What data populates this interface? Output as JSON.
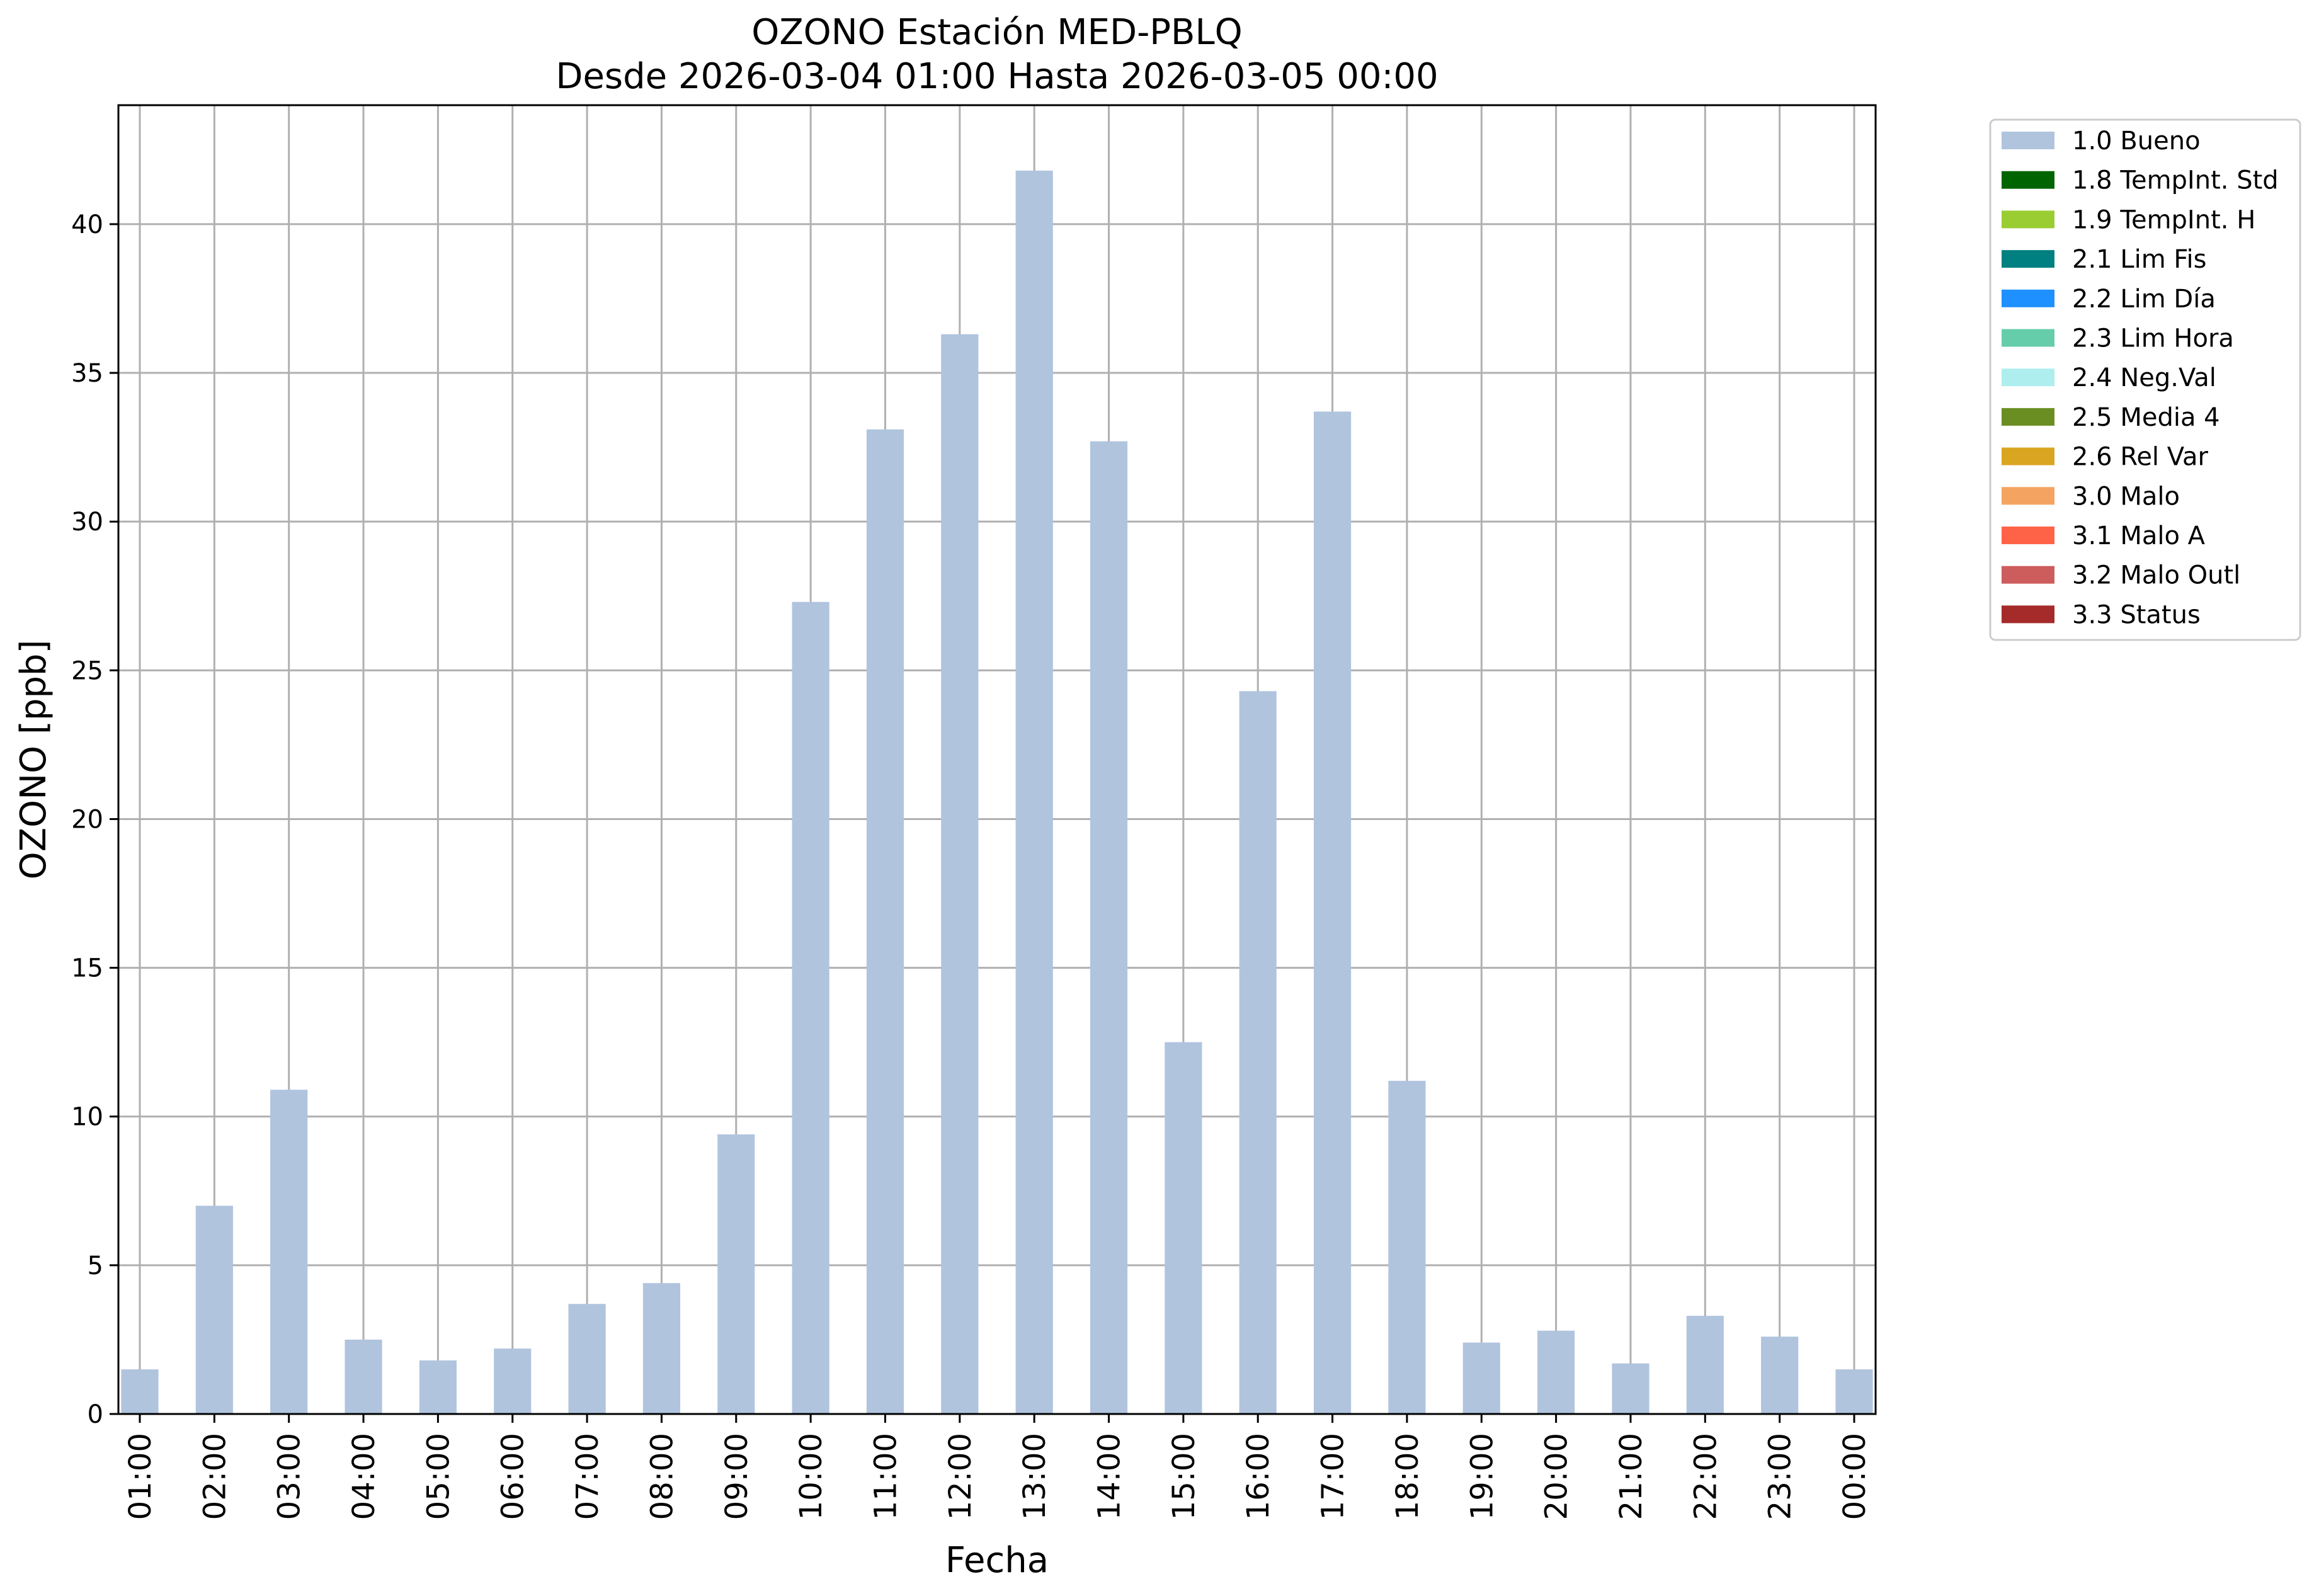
{
  "chart_data": {
    "type": "bar",
    "title": "OZONO Estación MED-PBLQ",
    "subtitle": "Desde 2026-03-04 01:00 Hasta 2026-03-05 00:00",
    "xlabel": "Fecha",
    "ylabel": "OZONO [ppb]",
    "ylim": [
      0,
      44
    ],
    "yticks": [
      "0",
      "5",
      "10",
      "15",
      "20",
      "25",
      "30",
      "35",
      "40"
    ],
    "grid": true,
    "legend_position": "outside-top-right",
    "categories": [
      "01:00",
      "02:00",
      "03:00",
      "04:00",
      "05:00",
      "06:00",
      "07:00",
      "08:00",
      "09:00",
      "10:00",
      "11:00",
      "12:00",
      "13:00",
      "14:00",
      "15:00",
      "16:00",
      "17:00",
      "18:00",
      "19:00",
      "20:00",
      "21:00",
      "22:00",
      "23:00",
      "00:00"
    ],
    "series": [
      {
        "name": "1.0 Bueno",
        "color": "#b0c4de",
        "values": [
          1.5,
          7.0,
          10.9,
          2.5,
          1.8,
          2.2,
          3.7,
          4.4,
          9.4,
          27.3,
          33.1,
          36.3,
          41.8,
          32.7,
          12.5,
          24.3,
          33.7,
          11.2,
          2.4,
          2.8,
          1.7,
          3.3,
          2.6,
          1.5
        ]
      }
    ],
    "legend": [
      {
        "label": "1.0 Bueno",
        "color": "#b0c4de"
      },
      {
        "label": "1.8 TempInt. Std",
        "color": "#006400"
      },
      {
        "label": "1.9 TempInt. H",
        "color": "#9acd32"
      },
      {
        "label": "2.1 Lim Fis",
        "color": "#008080"
      },
      {
        "label": "2.2 Lim Día",
        "color": "#1e90ff"
      },
      {
        "label": "2.3 Lim Hora",
        "color": "#66cdaa"
      },
      {
        "label": "2.4 Neg.Val",
        "color": "#afeeee"
      },
      {
        "label": "2.5 Media 4",
        "color": "#6b8e23"
      },
      {
        "label": "2.6 Rel Var",
        "color": "#daa520"
      },
      {
        "label": "3.0 Malo",
        "color": "#f4a460"
      },
      {
        "label": "3.1 Malo A",
        "color": "#ff6347"
      },
      {
        "label": "3.2 Malo Outl",
        "color": "#cd5c5c"
      },
      {
        "label": "3.3 Status",
        "color": "#a52a2a"
      }
    ]
  }
}
